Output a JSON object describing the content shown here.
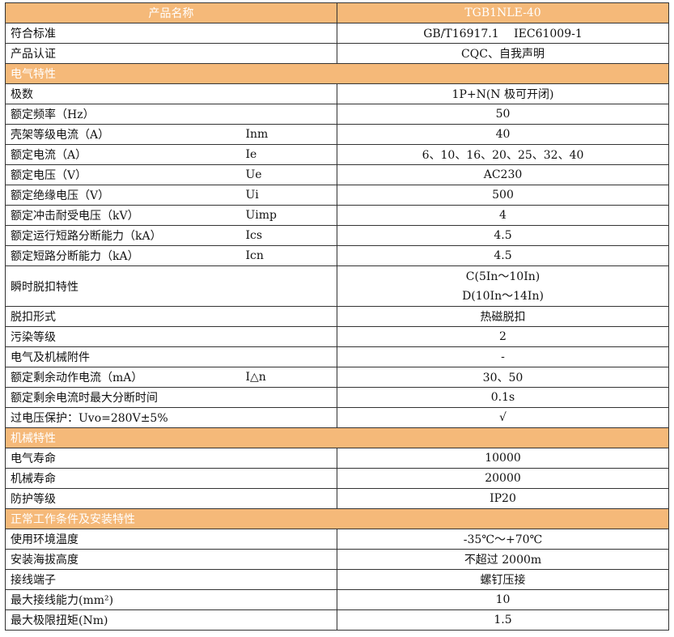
{
  "header": {
    "name": "产品名称",
    "value": "TGB1NLE-40"
  },
  "rows": [
    {
      "type": "row",
      "label": "符合标准",
      "symbol": "",
      "value": "GB/T16917.1　 IEC61009-1"
    },
    {
      "type": "row",
      "label": "产品认证",
      "symbol": "",
      "value": "CQC、自我声明"
    },
    {
      "type": "section",
      "label": "电气特性"
    },
    {
      "type": "row",
      "label": "极数",
      "symbol": "",
      "value": "1P+N(N 极可开闭)"
    },
    {
      "type": "row",
      "label": "额定频率（Hz）",
      "symbol": "",
      "value": "50"
    },
    {
      "type": "row",
      "label": "壳架等级电流（A）",
      "symbol": "Inm",
      "value": "40"
    },
    {
      "type": "row",
      "label": "额定电流（A）",
      "symbol": "Ie",
      "value": "6、10、16、20、25、32、40"
    },
    {
      "type": "row",
      "label": "额定电压（V）",
      "symbol": "Ue",
      "value": "AC230"
    },
    {
      "type": "row",
      "label": "额定绝缘电压（V）",
      "symbol": "Ui",
      "value": "500"
    },
    {
      "type": "row",
      "label": "额定冲击耐受电压（kV）",
      "symbol": "Uimp",
      "value": "4"
    },
    {
      "type": "row",
      "label": "额定运行短路分断能力（kA）",
      "symbol": "Ics",
      "value": "4.5"
    },
    {
      "type": "row",
      "label": "额定短路分断能力（kA）",
      "symbol": "Icn",
      "value": "4.5"
    },
    {
      "type": "double",
      "label": "瞬时脱扣特性",
      "symbol": "",
      "values": [
        "C(5In～10In)",
        "D(10In～14In)"
      ]
    },
    {
      "type": "row",
      "label": "脱扣形式",
      "symbol": "",
      "value": "热磁脱扣"
    },
    {
      "type": "row",
      "label": "污染等级",
      "symbol": "",
      "value": "2"
    },
    {
      "type": "row",
      "label": "电气及机械附件",
      "symbol": "",
      "value": "-"
    },
    {
      "type": "row",
      "label": "额定剩余动作电流（mA）",
      "symbol": "I△n",
      "value": "30、50"
    },
    {
      "type": "row",
      "label": "额定剩余电流时最大分断时间",
      "symbol": "",
      "value": "0.1s"
    },
    {
      "type": "row",
      "label": "过电压保护：Uvo=280V±5%",
      "symbol": "",
      "value": "√"
    },
    {
      "type": "section",
      "label": "机械特性"
    },
    {
      "type": "row",
      "label": "电气寿命",
      "symbol": "",
      "value": "10000"
    },
    {
      "type": "row",
      "label": "机械寿命",
      "symbol": "",
      "value": "20000"
    },
    {
      "type": "row",
      "label": "防护等级",
      "symbol": "",
      "value": "IP20"
    },
    {
      "type": "section",
      "label": "正常工作条件及安装特性"
    },
    {
      "type": "row",
      "label": "使用环境温度",
      "symbol": "",
      "value": "-35℃～+70℃"
    },
    {
      "type": "row",
      "label": "安装海拔高度",
      "symbol": "",
      "value": "不超过 2000m"
    },
    {
      "type": "row",
      "label": "接线端子",
      "symbol": "",
      "value": "螺钉压接"
    },
    {
      "type": "row",
      "label": "最大接线能力(mm²)",
      "symbol": "",
      "value": "10"
    },
    {
      "type": "row",
      "label": "最大极限扭矩(Nm)",
      "symbol": "",
      "value": "1.5"
    }
  ],
  "colors": {
    "header_bg": "#F5B979",
    "header_text": "#FFFFFF"
  }
}
